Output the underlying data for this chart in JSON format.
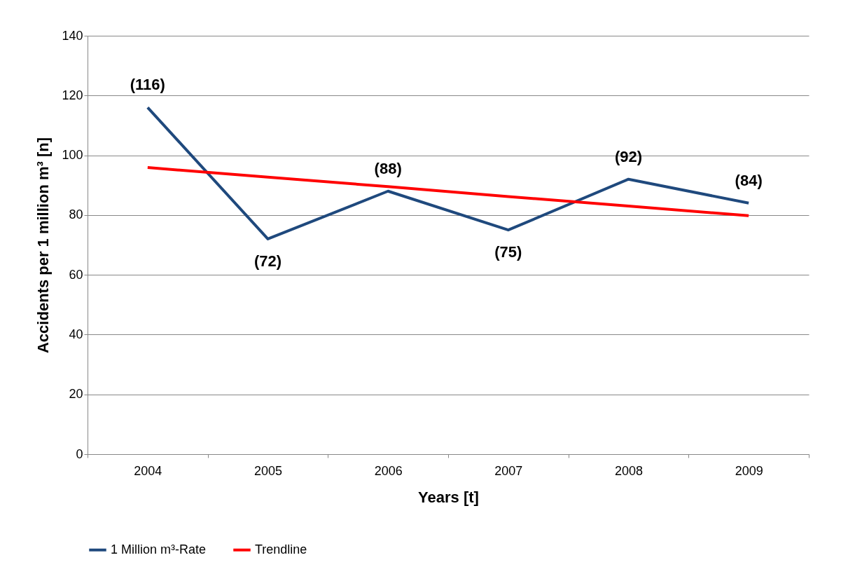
{
  "chart_data": {
    "type": "line",
    "xlabel": "Years [t]",
    "ylabel": "Accidents per 1 million m³ [n]",
    "categories": [
      "2004",
      "2005",
      "2006",
      "2007",
      "2008",
      "2009"
    ],
    "ylim": [
      0,
      140
    ],
    "yticks": [
      0,
      20,
      40,
      60,
      80,
      100,
      120,
      140
    ],
    "grid": "y",
    "legend": "bottom",
    "marker": "none",
    "line_style": "solid",
    "series": [
      {
        "name": "1 Million m³-Rate",
        "color": "#1f497d",
        "values": [
          116,
          72,
          88,
          75,
          92,
          84
        ],
        "value_labels": [
          "(116)",
          "(72)",
          "(88)",
          "(75)",
          "(92)",
          "(84)"
        ]
      },
      {
        "name": "Trendline",
        "type": "line",
        "color": "#ff0000",
        "values": [
          95.9,
          92.7,
          89.5,
          86.2,
          83.0,
          79.8
        ]
      }
    ]
  }
}
